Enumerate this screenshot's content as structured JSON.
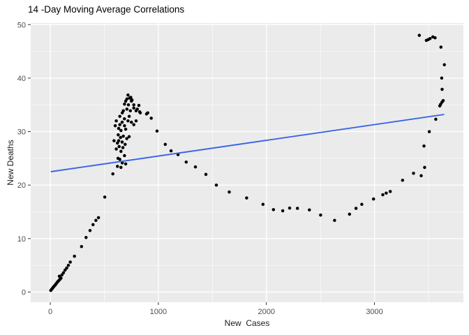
{
  "window": {
    "kind": "r-plot"
  },
  "chart_data": {
    "type": "scatter",
    "title": "14 -Day Moving Average Correlations",
    "xlabel": "New  Cases",
    "ylabel": "New Deaths",
    "x_ticks": [
      0,
      1000,
      2000,
      3000
    ],
    "y_ticks": [
      0,
      10,
      20,
      30,
      40,
      50
    ],
    "x_minor_ticks": [
      500,
      1500,
      2500,
      3500
    ],
    "y_minor_ticks": [
      5,
      15,
      25,
      35,
      45
    ],
    "xlim": [
      -181,
      3823
    ],
    "ylim": [
      -1.9,
      50.3
    ],
    "grid": true,
    "legend": "none",
    "colors": {
      "background": "#FFFFFF",
      "panel_background": "#EBEBEB",
      "gridline": "#FFFFFF",
      "point": "#000000",
      "trend_line": "#3B64E8",
      "tick_label": "#4D4D4D",
      "tick_mark": "#333333",
      "axis_title": "#1A1A1A",
      "title": "#000000"
    },
    "series": [
      {
        "name": "moving-average-points",
        "type": "scatter",
        "points": [
          [
            5,
            0.3
          ],
          [
            12,
            0.5
          ],
          [
            20,
            0.7
          ],
          [
            28,
            0.9
          ],
          [
            36,
            1.1
          ],
          [
            45,
            1.3
          ],
          [
            54,
            1.55
          ],
          [
            63,
            1.8
          ],
          [
            72,
            2.0
          ],
          [
            81,
            2.2
          ],
          [
            90,
            2.4
          ],
          [
            99,
            2.6
          ],
          [
            84,
            2.95
          ],
          [
            108,
            3.2
          ],
          [
            122,
            3.6
          ],
          [
            137,
            4.1
          ],
          [
            152,
            4.5
          ],
          [
            168,
            5.0
          ],
          [
            185,
            5.6
          ],
          [
            224,
            6.7
          ],
          [
            289,
            8.5
          ],
          [
            331,
            10.2
          ],
          [
            368,
            11.5
          ],
          [
            396,
            12.6
          ],
          [
            422,
            13.4
          ],
          [
            446,
            13.9
          ],
          [
            504,
            17.75
          ],
          [
            579,
            22.1
          ],
          [
            622,
            23.5
          ],
          [
            627,
            25.0
          ],
          [
            666,
            24.15
          ],
          [
            644,
            24.8
          ],
          [
            654,
            23.3
          ],
          [
            698,
            23.95
          ],
          [
            687,
            25.5
          ],
          [
            654,
            26.3
          ],
          [
            611,
            26.75
          ],
          [
            637,
            27.2
          ],
          [
            672,
            27.0
          ],
          [
            622,
            27.85
          ],
          [
            633,
            28.3
          ],
          [
            665,
            28.05
          ],
          [
            693,
            27.6
          ],
          [
            590,
            28.3
          ],
          [
            629,
            29.4
          ],
          [
            650,
            28.9
          ],
          [
            676,
            29.15
          ],
          [
            708,
            28.7
          ],
          [
            730,
            29.05
          ],
          [
            601,
            31.1
          ],
          [
            611,
            32.0
          ],
          [
            633,
            30.6
          ],
          [
            654,
            30.2
          ],
          [
            698,
            30.45
          ],
          [
            644,
            31.3
          ],
          [
            665,
            31.75
          ],
          [
            687,
            31.1
          ],
          [
            719,
            32.0
          ],
          [
            751,
            31.75
          ],
          [
            773,
            31.3
          ],
          [
            794,
            32.0
          ],
          [
            686,
            32.4
          ],
          [
            730,
            32.85
          ],
          [
            644,
            32.85
          ],
          [
            666,
            33.5
          ],
          [
            676,
            33.9
          ],
          [
            709,
            34.2
          ],
          [
            741,
            33.9
          ],
          [
            773,
            34.4
          ],
          [
            805,
            34.2
          ],
          [
            827,
            33.7
          ],
          [
            687,
            35.15
          ],
          [
            698,
            35.7
          ],
          [
            709,
            36.1
          ],
          [
            723,
            35.0
          ],
          [
            735,
            36.3
          ],
          [
            745,
            36.4
          ],
          [
            757,
            35.9
          ],
          [
            719,
            36.85
          ],
          [
            736,
            36.25
          ],
          [
            773,
            35.0
          ],
          [
            751,
            35.7
          ],
          [
            794,
            33.9
          ],
          [
            820,
            34.9
          ],
          [
            833,
            33.5
          ],
          [
            891,
            33.3
          ],
          [
            902,
            33.5
          ],
          [
            934,
            32.5
          ],
          [
            988,
            30.1
          ],
          [
            1064,
            27.6
          ],
          [
            1118,
            26.4
          ],
          [
            1182,
            25.7
          ],
          [
            1258,
            24.3
          ],
          [
            1343,
            23.4
          ],
          [
            1440,
            22.0
          ],
          [
            1537,
            20.0
          ],
          [
            1656,
            18.7
          ],
          [
            1817,
            17.6
          ],
          [
            1968,
            16.4
          ],
          [
            2065,
            15.4
          ],
          [
            2151,
            15.2
          ],
          [
            2215,
            15.7
          ],
          [
            2287,
            15.65
          ],
          [
            2398,
            15.35
          ],
          [
            2502,
            14.4
          ],
          [
            2631,
            13.4
          ],
          [
            2769,
            14.55
          ],
          [
            2829,
            15.65
          ],
          [
            2883,
            16.4
          ],
          [
            2991,
            17.4
          ],
          [
            3077,
            18.2
          ],
          [
            3109,
            18.5
          ],
          [
            3146,
            18.8
          ],
          [
            3260,
            20.9
          ],
          [
            3361,
            22.2
          ],
          [
            3432,
            21.75
          ],
          [
            3464,
            23.3
          ],
          [
            3458,
            27.3
          ],
          [
            3507,
            30.0
          ],
          [
            3567,
            32.3
          ],
          [
            3604,
            34.8
          ],
          [
            3612,
            35.1
          ],
          [
            3625,
            35.5
          ],
          [
            3636,
            35.8
          ],
          [
            3626,
            37.9
          ],
          [
            3622,
            40.0
          ],
          [
            3647,
            42.5
          ],
          [
            3615,
            45.8
          ],
          [
            3561,
            47.55
          ],
          [
            3540,
            47.7
          ],
          [
            3514,
            47.4
          ],
          [
            3497,
            47.2
          ],
          [
            3480,
            47.05
          ],
          [
            3415,
            48.0
          ]
        ]
      },
      {
        "name": "linear-trend",
        "type": "line",
        "points": [
          [
            5,
            22.5
          ],
          [
            3645,
            33.2
          ]
        ]
      }
    ]
  }
}
